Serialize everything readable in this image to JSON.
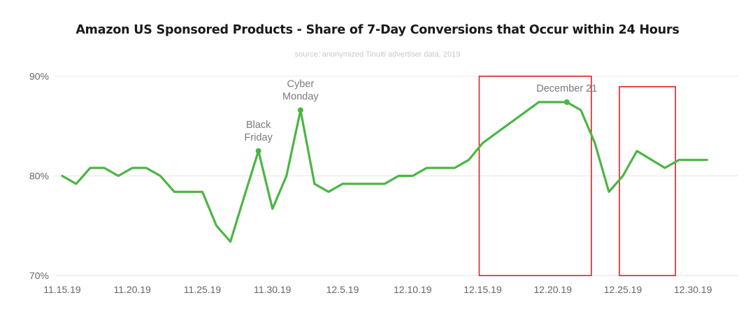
{
  "chart_data": {
    "type": "line",
    "title": "Amazon US Sponsored Products - Share of 7-Day Conversions that Occur within 24 Hours",
    "subtitle": "source: anonymized Tinuiti advertiser data, 2019",
    "xlabel": "",
    "ylabel": "",
    "ylim": [
      70,
      90
    ],
    "y_ticks": [
      "70%",
      "80%",
      "90%"
    ],
    "x_ticks": [
      "11.15.19",
      "11.20.19",
      "11.25.19",
      "11.30.19",
      "12.5.19",
      "12.10.19",
      "12.15.19",
      "12.20.19",
      "12.25.19",
      "12.30.19"
    ],
    "grid": true,
    "series": [
      {
        "color": "#4bb543",
        "points": [
          [
            "11.15.19",
            80.0
          ],
          [
            "11.16.19",
            79.2
          ],
          [
            "11.17.19",
            80.8
          ],
          [
            "11.18.19",
            80.8
          ],
          [
            "11.19.19",
            80.0
          ],
          [
            "11.20.19",
            80.8
          ],
          [
            "11.21.19",
            80.8
          ],
          [
            "11.22.19",
            80.0
          ],
          [
            "11.23.19",
            78.4
          ],
          [
            "11.24.19",
            78.4
          ],
          [
            "11.25.19",
            78.4
          ],
          [
            "11.26.19",
            75.0
          ],
          [
            "11.27.19",
            73.4
          ],
          [
            "11.28.19",
            78.0
          ],
          [
            "11.29.19",
            82.5
          ],
          [
            "11.30.19",
            76.7
          ],
          [
            "12.1.19",
            80.0
          ],
          [
            "12.2.19",
            86.6
          ],
          [
            "12.3.19",
            79.2
          ],
          [
            "12.4.19",
            78.4
          ],
          [
            "12.5.19",
            79.2
          ],
          [
            "12.6.19",
            79.2
          ],
          [
            "12.7.19",
            79.2
          ],
          [
            "12.8.19",
            79.2
          ],
          [
            "12.9.19",
            80.0
          ],
          [
            "12.10.19",
            80.0
          ],
          [
            "12.11.19",
            80.8
          ],
          [
            "12.12.19",
            80.8
          ],
          [
            "12.13.19",
            80.8
          ],
          [
            "12.14.19",
            81.6
          ],
          [
            "12.15.19",
            83.3
          ],
          [
            "12.19.19",
            87.4
          ],
          [
            "12.20.19",
            87.4
          ],
          [
            "12.21.19",
            87.4
          ],
          [
            "12.22.19",
            86.6
          ],
          [
            "12.23.19",
            83.3
          ],
          [
            "12.24.19",
            78.4
          ],
          [
            "12.25.19",
            80.0
          ],
          [
            "12.26.19",
            82.5
          ],
          [
            "12.28.19",
            80.8
          ],
          [
            "12.29.19",
            81.6
          ],
          [
            "12.30.19",
            81.6
          ],
          [
            "12.31.19",
            81.6
          ]
        ]
      }
    ],
    "annotations": [
      {
        "label_lines": [
          "Black",
          "Friday"
        ],
        "x": "11.29.19",
        "y": 82.5
      },
      {
        "label_lines": [
          "Cyber",
          "Monday"
        ],
        "x": "12.2.19",
        "y": 86.6
      },
      {
        "label_lines": [
          "December 21"
        ],
        "x": "12.21.19",
        "y": 87.4
      }
    ],
    "highlight_boxes": [
      {
        "x_start": "12.15.19",
        "x_end": "12.23.19",
        "color": "#e02020"
      },
      {
        "x_start": "12.25.19",
        "x_end": "12.29.19",
        "color": "#e02020"
      }
    ]
  }
}
